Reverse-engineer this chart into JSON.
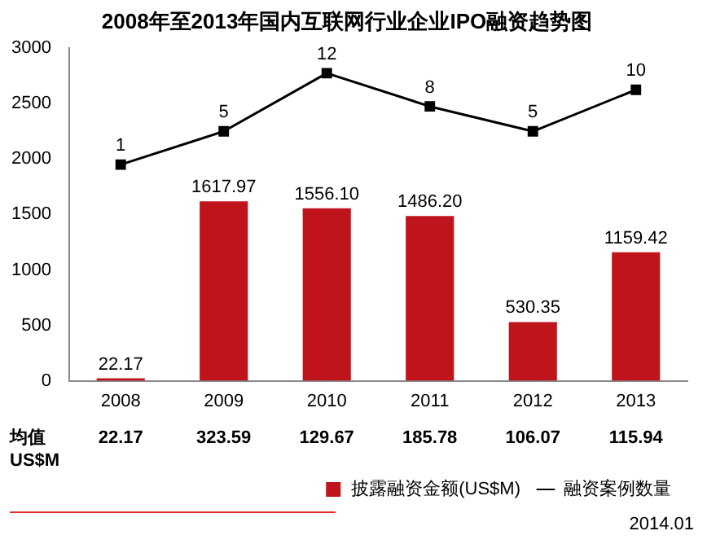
{
  "chart_data": {
    "type": "bar",
    "title": "2008年至2013年国内互联网行业企业IPO融资趋势图",
    "categories": [
      "2008",
      "2009",
      "2010",
      "2011",
      "2012",
      "2013"
    ],
    "series": [
      {
        "name": "披露融资金额(US$M)",
        "color": "#c0141c",
        "values": [
          22.17,
          1617.97,
          1556.1,
          1486.2,
          530.35,
          1159.42
        ],
        "value_labels": [
          "22.17",
          "1617.97",
          "1556.10",
          "1486.20",
          "530.35",
          "1159.42"
        ]
      },
      {
        "name": "融资案例数量",
        "type": "line",
        "axis": "y2",
        "color": "#000000",
        "marker": "square",
        "values": [
          1,
          5,
          12,
          8,
          5,
          10
        ]
      }
    ],
    "ylim": [
      0,
      3000
    ],
    "yticks": [
      0,
      500,
      1000,
      1500,
      2000,
      2500,
      3000
    ],
    "y2lim": [
      -25,
      15
    ],
    "data_labels": true,
    "grid": false,
    "legend": "bottom",
    "annotations": [
      "均值 US$M",
      "22.17",
      "323.59",
      "129.67",
      "185.78",
      "106.07",
      "115.94",
      "2014.01"
    ]
  }
}
